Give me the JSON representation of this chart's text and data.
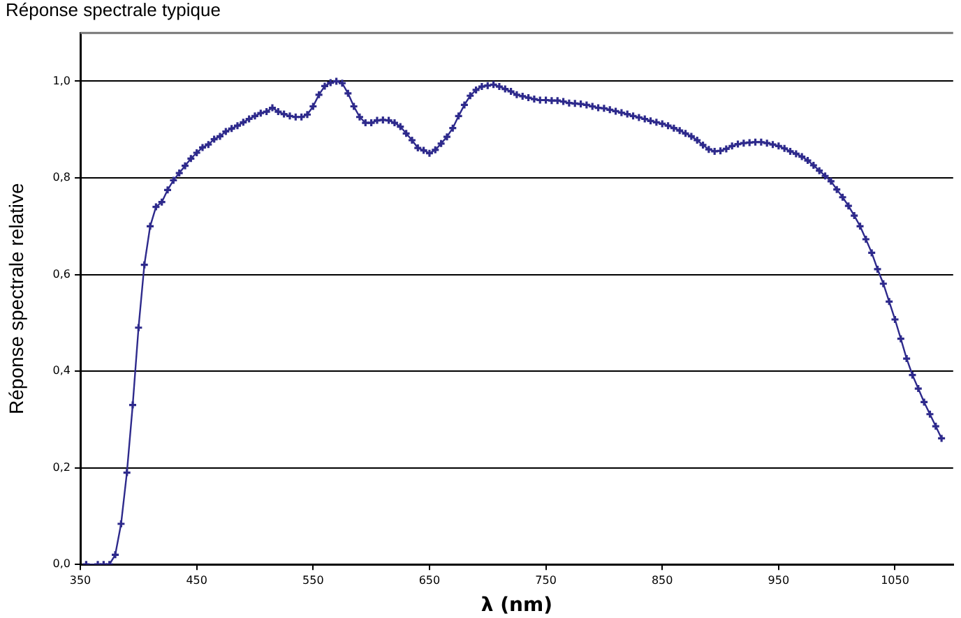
{
  "chart_data": {
    "type": "line",
    "title": "Réponse spectrale typique",
    "xlabel": "λ (nm)",
    "ylabel": "Réponse spectrale relative",
    "xlim": [
      350,
      1100
    ],
    "xticks": [
      350,
      450,
      550,
      650,
      750,
      850,
      950,
      1050
    ],
    "ylim": [
      0,
      1.1
    ],
    "yticks": [
      {
        "value": 0,
        "label": "0,0"
      },
      {
        "value": 0.2,
        "label": "0,2"
      },
      {
        "value": 0.4,
        "label": "0,4"
      },
      {
        "value": 0.6,
        "label": "0,6"
      },
      {
        "value": 0.8,
        "label": "0,8"
      },
      {
        "value": 1.0,
        "label": "1,0"
      }
    ],
    "grid": "y",
    "legend": false,
    "marker": "cross",
    "line_style": "solid",
    "series": [
      {
        "color": "#2e2a8c",
        "x": [
          355,
          365,
          370,
          375,
          380,
          385,
          390,
          395,
          400,
          405,
          410,
          415,
          420,
          425,
          430,
          435,
          440,
          445,
          450,
          455,
          460,
          465,
          470,
          475,
          480,
          485,
          490,
          495,
          500,
          505,
          510,
          515,
          520,
          525,
          530,
          535,
          540,
          545,
          550,
          555,
          560,
          565,
          570,
          575,
          580,
          585,
          590,
          595,
          600,
          605,
          610,
          615,
          620,
          625,
          630,
          635,
          640,
          645,
          650,
          655,
          660,
          665,
          670,
          675,
          680,
          685,
          690,
          695,
          700,
          705,
          710,
          715,
          720,
          725,
          730,
          735,
          740,
          745,
          750,
          755,
          760,
          765,
          770,
          775,
          780,
          785,
          790,
          795,
          800,
          805,
          810,
          815,
          820,
          825,
          830,
          835,
          840,
          845,
          850,
          855,
          860,
          865,
          870,
          875,
          880,
          885,
          890,
          895,
          900,
          905,
          910,
          915,
          920,
          925,
          930,
          935,
          940,
          945,
          950,
          955,
          960,
          965,
          970,
          975,
          980,
          985,
          990,
          995,
          1000,
          1005,
          1010,
          1015,
          1020,
          1025,
          1030,
          1035,
          1040,
          1045,
          1050,
          1055,
          1060,
          1065,
          1070,
          1075,
          1080,
          1085,
          1090
        ],
        "values": [
          0,
          0,
          0,
          0,
          0.02,
          0.084,
          0.19,
          0.33,
          0.49,
          0.62,
          0.7,
          0.74,
          0.75,
          0.775,
          0.795,
          0.81,
          0.825,
          0.84,
          0.852,
          0.863,
          0.869,
          0.88,
          0.886,
          0.896,
          0.902,
          0.908,
          0.915,
          0.922,
          0.928,
          0.934,
          0.937,
          0.945,
          0.937,
          0.932,
          0.928,
          0.926,
          0.926,
          0.931,
          0.948,
          0.972,
          0.99,
          0.997,
          1.0,
          0.996,
          0.975,
          0.948,
          0.926,
          0.914,
          0.914,
          0.919,
          0.92,
          0.919,
          0.914,
          0.906,
          0.892,
          0.878,
          0.862,
          0.857,
          0.851,
          0.858,
          0.871,
          0.885,
          0.903,
          0.928,
          0.951,
          0.97,
          0.982,
          0.989,
          0.991,
          0.993,
          0.989,
          0.984,
          0.979,
          0.972,
          0.969,
          0.966,
          0.963,
          0.961,
          0.961,
          0.96,
          0.96,
          0.958,
          0.955,
          0.954,
          0.953,
          0.951,
          0.948,
          0.945,
          0.944,
          0.941,
          0.938,
          0.935,
          0.932,
          0.928,
          0.925,
          0.922,
          0.918,
          0.915,
          0.912,
          0.908,
          0.903,
          0.898,
          0.892,
          0.886,
          0.878,
          0.868,
          0.859,
          0.855,
          0.856,
          0.86,
          0.866,
          0.87,
          0.872,
          0.873,
          0.874,
          0.874,
          0.872,
          0.869,
          0.866,
          0.861,
          0.855,
          0.85,
          0.844,
          0.836,
          0.826,
          0.815,
          0.804,
          0.793,
          0.776,
          0.76,
          0.742,
          0.722,
          0.7,
          0.673,
          0.645,
          0.611,
          0.581,
          0.544,
          0.507,
          0.467,
          0.426,
          0.392,
          0.364,
          0.336,
          0.311,
          0.286,
          0.261
        ]
      }
    ]
  }
}
